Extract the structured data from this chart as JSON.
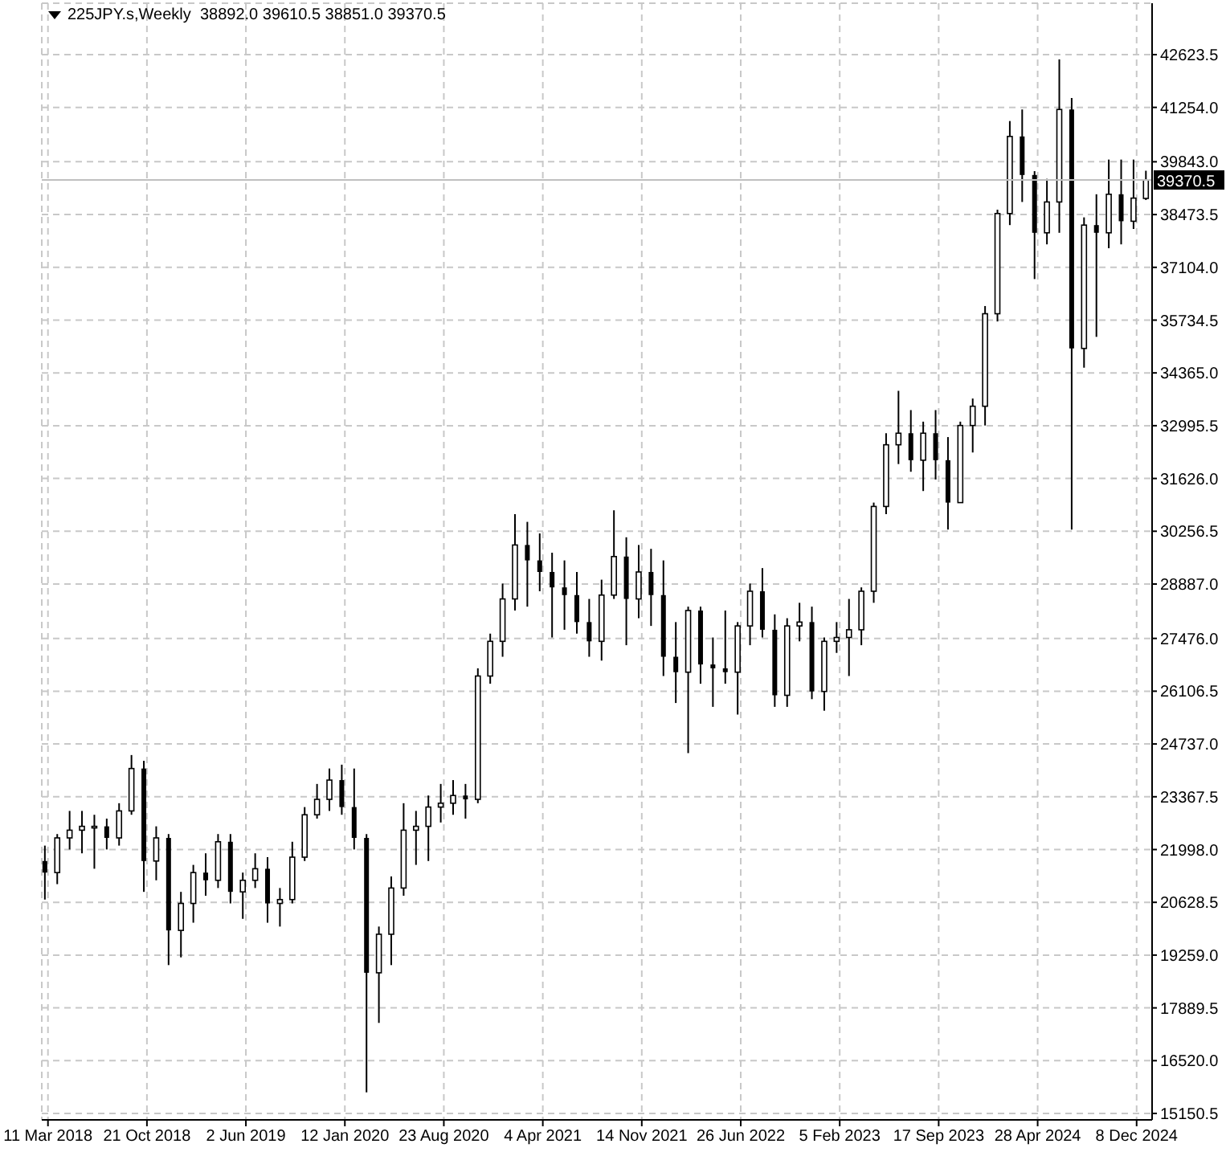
{
  "chart_data": {
    "type": "candlestick",
    "title": "225JPY.s,Weekly  38892.0 39610.5 38851.0 39370.5",
    "x": [
      "2018-03-04",
      "2018-04-01",
      "2018-04-29",
      "2018-05-27",
      "2018-06-24",
      "2018-07-22",
      "2018-08-19",
      "2018-09-16",
      "2018-10-14",
      "2018-11-11",
      "2018-12-09",
      "2019-01-06",
      "2019-02-03",
      "2019-03-03",
      "2019-03-31",
      "2019-04-28",
      "2019-05-26",
      "2019-06-23",
      "2019-07-21",
      "2019-08-18",
      "2019-09-15",
      "2019-10-13",
      "2019-11-10",
      "2019-12-08",
      "2020-01-05",
      "2020-02-02",
      "2020-03-01",
      "2020-03-29",
      "2020-04-26",
      "2020-05-24",
      "2020-06-21",
      "2020-07-19",
      "2020-08-16",
      "2020-09-13",
      "2020-10-11",
      "2020-11-08",
      "2020-12-06",
      "2021-01-03",
      "2021-01-31",
      "2021-02-28",
      "2021-03-28",
      "2021-04-25",
      "2021-05-23",
      "2021-06-20",
      "2021-07-18",
      "2021-08-15",
      "2021-09-12",
      "2021-10-10",
      "2021-11-07",
      "2021-12-05",
      "2022-01-02",
      "2022-01-30",
      "2022-02-27",
      "2022-03-27",
      "2022-04-24",
      "2022-05-22",
      "2022-06-19",
      "2022-07-17",
      "2022-08-14",
      "2022-09-11",
      "2022-10-09",
      "2022-11-06",
      "2022-12-04",
      "2023-01-01",
      "2023-01-29",
      "2023-02-26",
      "2023-03-26",
      "2023-04-23",
      "2023-05-21",
      "2023-06-18",
      "2023-07-16",
      "2023-08-13",
      "2023-09-10",
      "2023-10-08",
      "2023-11-05",
      "2023-12-03",
      "2023-12-31",
      "2024-01-28",
      "2024-02-25",
      "2024-03-24",
      "2024-04-21",
      "2024-05-19",
      "2024-06-16",
      "2024-07-14",
      "2024-08-11",
      "2024-09-08",
      "2024-10-06",
      "2024-11-03",
      "2024-12-01",
      "2024-12-29"
    ],
    "ohlc": [
      [
        21700,
        22100,
        20700,
        21400
      ],
      [
        21400,
        22400,
        21100,
        22300
      ],
      [
        22300,
        23000,
        22000,
        22500
      ],
      [
        22500,
        23000,
        21900,
        22600
      ],
      [
        22600,
        22900,
        21500,
        22600
      ],
      [
        22600,
        22800,
        22000,
        22300
      ],
      [
        22300,
        23200,
        22100,
        23000
      ],
      [
        23000,
        24450,
        22900,
        24100
      ],
      [
        24100,
        24300,
        20900,
        21700
      ],
      [
        21700,
        22600,
        21200,
        22300
      ],
      [
        22300,
        22400,
        19000,
        19900
      ],
      [
        19900,
        20900,
        19200,
        20600
      ],
      [
        20600,
        21600,
        20100,
        21400
      ],
      [
        21400,
        21900,
        20800,
        21200
      ],
      [
        21200,
        22400,
        21000,
        22200
      ],
      [
        22200,
        22400,
        20600,
        20900
      ],
      [
        20900,
        21400,
        20200,
        21200
      ],
      [
        21200,
        21900,
        21000,
        21500
      ],
      [
        21500,
        21800,
        20100,
        20600
      ],
      [
        20600,
        21000,
        20000,
        20700
      ],
      [
        20700,
        22200,
        20600,
        21800
      ],
      [
        21800,
        23100,
        21700,
        22900
      ],
      [
        22900,
        23700,
        22800,
        23300
      ],
      [
        23300,
        24100,
        23000,
        23800
      ],
      [
        23800,
        24200,
        22900,
        23100
      ],
      [
        23100,
        24100,
        22000,
        22300
      ],
      [
        22300,
        22400,
        15700,
        18800
      ],
      [
        18800,
        20000,
        17500,
        19800
      ],
      [
        19800,
        21300,
        19000,
        21000
      ],
      [
        21000,
        23200,
        20800,
        22500
      ],
      [
        22500,
        23000,
        21600,
        22600
      ],
      [
        22600,
        23400,
        21700,
        23100
      ],
      [
        23100,
        23700,
        22700,
        23200
      ],
      [
        23200,
        23800,
        22900,
        23400
      ],
      [
        23400,
        23700,
        22800,
        23300
      ],
      [
        23300,
        26700,
        23200,
        26500
      ],
      [
        26500,
        27600,
        26300,
        27400
      ],
      [
        27400,
        28900,
        27000,
        28500
      ],
      [
        28500,
        30700,
        28200,
        29900
      ],
      [
        29900,
        30500,
        28300,
        29500
      ],
      [
        29500,
        30200,
        28700,
        29200
      ],
      [
        29200,
        29700,
        27500,
        28800
      ],
      [
        28800,
        29500,
        27700,
        28600
      ],
      [
        28600,
        29200,
        27600,
        27900
      ],
      [
        27900,
        28500,
        27000,
        27400
      ],
      [
        27400,
        29000,
        26900,
        28600
      ],
      [
        28600,
        30800,
        28500,
        29600
      ],
      [
        29600,
        30100,
        27300,
        28500
      ],
      [
        28500,
        29900,
        28000,
        29200
      ],
      [
        29200,
        29800,
        27800,
        28600
      ],
      [
        28600,
        29500,
        26500,
        27000
      ],
      [
        27000,
        27900,
        25800,
        26600
      ],
      [
        26600,
        28300,
        24500,
        28200
      ],
      [
        28200,
        28300,
        26300,
        26800
      ],
      [
        26800,
        27500,
        25700,
        26700
      ],
      [
        26700,
        28200,
        26300,
        26600
      ],
      [
        26600,
        27900,
        25500,
        27800
      ],
      [
        27800,
        28900,
        27300,
        28700
      ],
      [
        28700,
        29300,
        27500,
        27700
      ],
      [
        27700,
        28100,
        25700,
        26000
      ],
      [
        26000,
        28000,
        25700,
        27800
      ],
      [
        27800,
        28400,
        27400,
        27900
      ],
      [
        27900,
        28300,
        25900,
        26100
      ],
      [
        26100,
        27500,
        25600,
        27400
      ],
      [
        27400,
        27900,
        27100,
        27500
      ],
      [
        27500,
        28500,
        26500,
        27700
      ],
      [
        27700,
        28800,
        27300,
        28700
      ],
      [
        28700,
        31000,
        28400,
        30900
      ],
      [
        30900,
        32800,
        30700,
        32500
      ],
      [
        32500,
        33900,
        32000,
        32800
      ],
      [
        32800,
        33400,
        31800,
        32100
      ],
      [
        32100,
        33100,
        31300,
        32800
      ],
      [
        32800,
        33400,
        31600,
        32100
      ],
      [
        32100,
        32700,
        30300,
        31000
      ],
      [
        31000,
        33100,
        31000,
        33000
      ],
      [
        33000,
        33700,
        32300,
        33500
      ],
      [
        33500,
        36100,
        33000,
        35900
      ],
      [
        35900,
        38600,
        35700,
        38500
      ],
      [
        38500,
        40900,
        38200,
        40500
      ],
      [
        40500,
        41200,
        38800,
        39500
      ],
      [
        39500,
        39600,
        36800,
        38000
      ],
      [
        38000,
        39400,
        37700,
        38800
      ],
      [
        38800,
        42500,
        38000,
        41200
      ],
      [
        41200,
        41500,
        30300,
        35000
      ],
      [
        35000,
        38400,
        34500,
        38200
      ],
      [
        38200,
        39000,
        35300,
        38000
      ],
      [
        38000,
        39900,
        37600,
        39000
      ],
      [
        39000,
        39900,
        37700,
        38300
      ],
      [
        38300,
        39900,
        38100,
        38900
      ],
      [
        38892.0,
        39610.5,
        38851.0,
        39370.5
      ]
    ],
    "color": "#000000",
    "xlim": [
      "2018-02-25",
      "2025-01-12"
    ],
    "xticks": [
      {
        "value": "2018-03-11",
        "label": "11 Mar 2018"
      },
      {
        "value": "2018-10-21",
        "label": "21 Oct 2018"
      },
      {
        "value": "2019-06-02",
        "label": "2 Jun 2019"
      },
      {
        "value": "2020-01-12",
        "label": "12 Jan 2020"
      },
      {
        "value": "2020-08-23",
        "label": "23 Aug 2020"
      },
      {
        "value": "2021-04-04",
        "label": "4 Apr 2021"
      },
      {
        "value": "2021-11-14",
        "label": "14 Nov 2021"
      },
      {
        "value": "2022-06-26",
        "label": "26 Jun 2022"
      },
      {
        "value": "2023-02-05",
        "label": "5 Feb 2023"
      },
      {
        "value": "2023-09-17",
        "label": "17 Sep 2023"
      },
      {
        "value": "2024-04-28",
        "label": "28 Apr 2024"
      },
      {
        "value": "2024-12-08",
        "label": "8 Dec 2024"
      }
    ],
    "ylim": [
      14984,
      43957
    ],
    "yticks": [
      {
        "value": 15150.5,
        "label": "15150.5"
      },
      {
        "value": 16520,
        "label": "16520.0"
      },
      {
        "value": 17889.5,
        "label": "17889.5"
      },
      {
        "value": 19259,
        "label": "19259.0"
      },
      {
        "value": 20628.5,
        "label": "20628.5"
      },
      {
        "value": 21998,
        "label": "21998.0"
      },
      {
        "value": 23367.5,
        "label": "23367.5"
      },
      {
        "value": 24737,
        "label": "24737.0"
      },
      {
        "value": 26106.5,
        "label": "26106.5"
      },
      {
        "value": 27476,
        "label": "27476.0"
      },
      {
        "value": 28887,
        "label": "28887.0"
      },
      {
        "value": 30256.5,
        "label": "30256.5"
      },
      {
        "value": 31626,
        "label": "31626.0"
      },
      {
        "value": 32995.5,
        "label": "32995.5"
      },
      {
        "value": 34365,
        "label": "34365.0"
      },
      {
        "value": 35734.5,
        "label": "35734.5"
      },
      {
        "value": 37104,
        "label": "37104.0"
      },
      {
        "value": 38473.5,
        "label": "38473.5"
      },
      {
        "value": 39843,
        "label": "39843.0"
      },
      {
        "value": 41254,
        "label": "41254.0"
      },
      {
        "value": 42623.5,
        "label": "42623.5"
      }
    ],
    "ref_lines": [
      {
        "axis": "y",
        "value": 39370.5,
        "label": "39370.5",
        "color": "#c0c0c0"
      }
    ],
    "grid": true
  }
}
